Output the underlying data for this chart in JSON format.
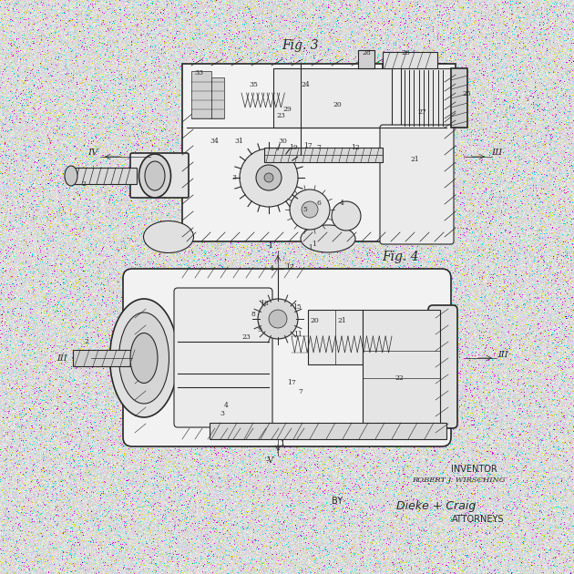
{
  "bg_color": [
    220,
    220,
    220
  ],
  "noise_std": 18,
  "noise_seed": 7,
  "draw_color": [
    40,
    40,
    40
  ],
  "fig_width": 6.3,
  "fig_height": 6.3,
  "dpi": 100,
  "inventor_label": "INVENTOR",
  "inventor_name": "ROBERT J. WIRSCHING",
  "by_label": "BY",
  "attorneys_label": "ATTORNEYS",
  "signature": "Dieke + Craig",
  "fig3_label": "Fig. 3",
  "fig4_label": "Fig. 4"
}
